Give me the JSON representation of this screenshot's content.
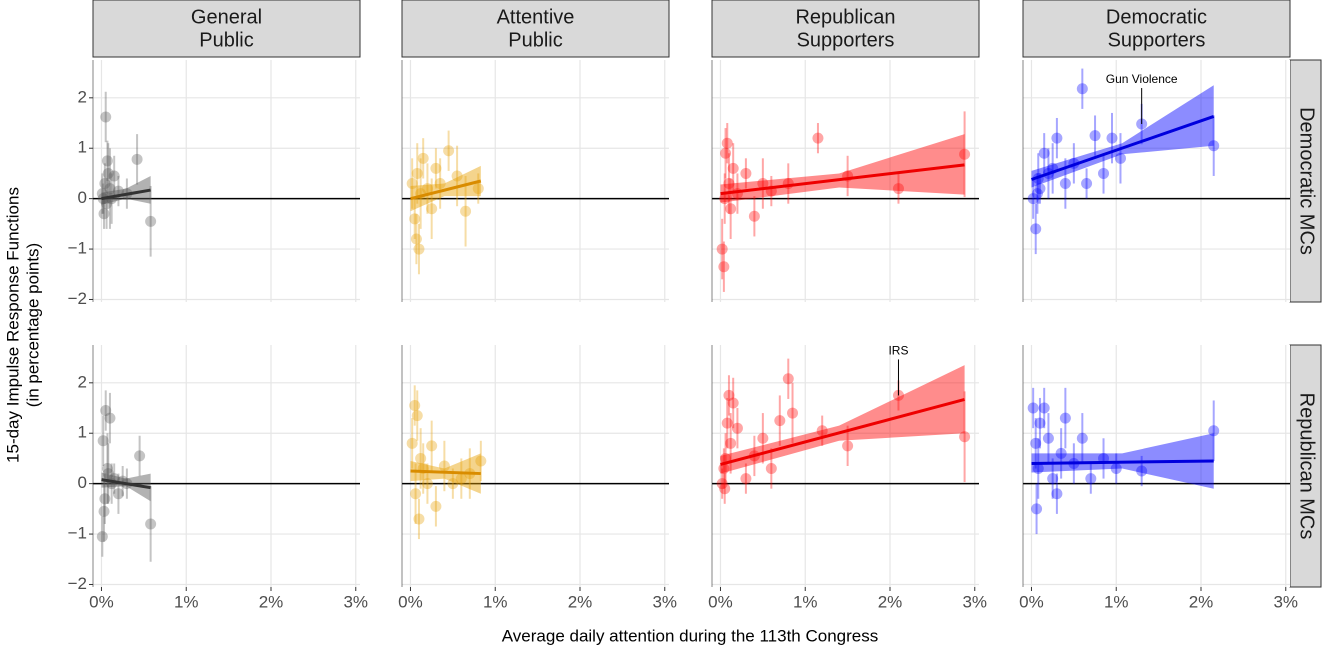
{
  "figure": {
    "x_label": "Average daily attention during the 113th Congress",
    "y_label": [
      "15-day Impulse Response Functions",
      "(in percentage points)"
    ],
    "columns": [
      [
        "General",
        "Public"
      ],
      [
        "Attentive",
        "Public"
      ],
      [
        "Republican",
        "Supporters"
      ],
      [
        "Democratic",
        "Supporters"
      ]
    ],
    "rows": [
      "Democratic MCs",
      "Republican MCs"
    ]
  },
  "chart_data": [
    {
      "type": "scatter",
      "color": "#555555",
      "fit_color": "#333333",
      "hline": 0,
      "x": [
        0.01,
        0.03,
        0.05,
        0.07,
        0.08,
        0.1,
        0.12,
        0.15,
        0.2,
        0.3,
        0.42,
        0.58,
        0.06,
        0.04,
        0.02
      ],
      "y": [
        0.1,
        -0.3,
        1.62,
        0.75,
        0.5,
        0.2,
        0.0,
        0.45,
        0.15,
        0.1,
        0.78,
        -0.45,
        -0.1,
        0.3,
        0.0
      ],
      "err": [
        0.4,
        0.3,
        0.5,
        0.4,
        0.6,
        0.8,
        0.5,
        0.4,
        0.3,
        0.3,
        0.5,
        0.7,
        0.5,
        0.4,
        0.3
      ],
      "fit_x": [
        0,
        0.58
      ],
      "fit_y": [
        0.0,
        0.17
      ],
      "band_x": [
        0,
        0.29,
        0.58
      ],
      "band_lo": [
        -0.12,
        0.0,
        -0.1
      ],
      "band_hi": [
        0.12,
        0.2,
        0.45
      ],
      "xlim": [
        -0.1,
        3.05
      ],
      "ylim": [
        -2.05,
        2.75
      ],
      "xticks": [
        {
          "value": 0,
          "label": "0%"
        },
        {
          "value": 1,
          "label": "1%"
        },
        {
          "value": 2,
          "label": "2%"
        },
        {
          "value": 3,
          "label": "3%"
        }
      ],
      "yticks": [
        {
          "value": -2,
          "label": "−2"
        },
        {
          "value": -1,
          "label": "−1"
        },
        0,
        1,
        2
      ]
    },
    {
      "type": "scatter",
      "color": "#e69f00",
      "fit_color": "#d98c00",
      "hline": 0,
      "x": [
        0.02,
        0.05,
        0.08,
        0.1,
        0.12,
        0.15,
        0.2,
        0.25,
        0.3,
        0.35,
        0.45,
        0.55,
        0.65,
        0.8,
        0.07
      ],
      "y": [
        0.3,
        -0.4,
        0.5,
        -1.0,
        0.1,
        0.8,
        0.2,
        -0.2,
        0.6,
        0.3,
        0.95,
        0.45,
        -0.25,
        0.2,
        -0.8
      ],
      "err": [
        0.5,
        0.4,
        0.6,
        0.5,
        0.7,
        0.4,
        0.5,
        0.6,
        0.4,
        0.5,
        0.4,
        0.6,
        0.7,
        0.3,
        0.5
      ],
      "fit_x": [
        0,
        0.83
      ],
      "fit_y": [
        0.0,
        0.35
      ],
      "band_x": [
        0,
        0.4,
        0.83
      ],
      "band_lo": [
        -0.25,
        0.05,
        0.05
      ],
      "band_hi": [
        0.25,
        0.3,
        0.65
      ],
      "xlim": [
        -0.1,
        3.05
      ],
      "ylim": [
        -2.05,
        2.75
      ],
      "xticks": [
        {
          "value": 0,
          "label": "0%"
        },
        {
          "value": 1,
          "label": "1%"
        },
        {
          "value": 2,
          "label": "2%"
        },
        {
          "value": 3,
          "label": "3%"
        }
      ],
      "yticks": [
        {
          "value": -2,
          "label": "−2"
        },
        {
          "value": -1,
          "label": "−1"
        },
        0,
        1,
        2
      ]
    },
    {
      "type": "scatter",
      "color": "#ff0000",
      "fit_color": "#ee0000",
      "hline": 0,
      "x": [
        0.02,
        0.04,
        0.06,
        0.08,
        0.1,
        0.15,
        0.2,
        0.3,
        0.4,
        0.5,
        0.6,
        0.8,
        1.15,
        1.5,
        2.1,
        2.88,
        0.05,
        0.12
      ],
      "y": [
        -1.0,
        -1.35,
        0.9,
        1.1,
        0.3,
        0.6,
        0.1,
        0.5,
        -0.35,
        0.3,
        0.15,
        0.3,
        1.2,
        0.45,
        0.2,
        0.88,
        0.0,
        -0.2
      ],
      "err": [
        0.6,
        0.5,
        0.5,
        0.4,
        0.6,
        0.5,
        0.4,
        0.3,
        0.4,
        0.5,
        0.3,
        0.4,
        0.3,
        0.4,
        0.3,
        0.85,
        0.5,
        0.6
      ],
      "fit_x": [
        0,
        2.88
      ],
      "fit_y": [
        0.1,
        0.67
      ],
      "band_x": [
        0,
        1.4,
        2.88
      ],
      "band_lo": [
        -0.08,
        0.22,
        0.08
      ],
      "band_hi": [
        0.28,
        0.5,
        1.28
      ],
      "xlim": [
        -0.1,
        3.05
      ],
      "ylim": [
        -2.05,
        2.75
      ],
      "xticks": [
        {
          "value": 0,
          "label": "0%"
        },
        {
          "value": 1,
          "label": "1%"
        },
        {
          "value": 2,
          "label": "2%"
        },
        {
          "value": 3,
          "label": "3%"
        }
      ],
      "yticks": [
        {
          "value": -2,
          "label": "−2"
        },
        {
          "value": -1,
          "label": "−1"
        },
        0,
        1,
        2
      ]
    },
    {
      "type": "scatter",
      "color": "#0000ff",
      "fit_color": "#0000dd",
      "hline": 0,
      "x": [
        0.02,
        0.05,
        0.08,
        0.1,
        0.15,
        0.2,
        0.3,
        0.4,
        0.5,
        0.6,
        0.65,
        0.75,
        0.85,
        0.95,
        1.05,
        1.3,
        2.15,
        0.07,
        0.25
      ],
      "y": [
        0.0,
        -0.6,
        0.4,
        0.2,
        0.9,
        0.5,
        1.2,
        0.3,
        0.7,
        2.18,
        0.3,
        1.25,
        0.5,
        1.2,
        0.8,
        1.48,
        1.05,
        0.1,
        0.6
      ],
      "err": [
        0.4,
        0.5,
        0.5,
        0.3,
        0.4,
        0.5,
        0.4,
        0.5,
        0.4,
        0.4,
        0.3,
        0.4,
        0.4,
        0.5,
        0.5,
        0.4,
        0.6,
        0.4,
        0.5
      ],
      "fit_x": [
        0,
        2.15
      ],
      "fit_y": [
        0.38,
        1.63
      ],
      "band_x": [
        0,
        1.07,
        2.15
      ],
      "band_lo": [
        0.22,
        0.88,
        1.05
      ],
      "band_hi": [
        0.55,
        1.1,
        2.25
      ],
      "annotation": {
        "text": "Gun Violence",
        "x": 1.3,
        "y": 1.48
      },
      "xlim": [
        -0.1,
        3.05
      ],
      "ylim": [
        -2.05,
        2.75
      ],
      "xticks": [
        {
          "value": 0,
          "label": "0%"
        },
        {
          "value": 1,
          "label": "1%"
        },
        {
          "value": 2,
          "label": "2%"
        },
        {
          "value": 3,
          "label": "3%"
        }
      ],
      "yticks": [
        {
          "value": -2,
          "label": "−2"
        },
        {
          "value": -1,
          "label": "−1"
        },
        0,
        1,
        2
      ]
    },
    {
      "type": "scatter",
      "color": "#555555",
      "fit_color": "#333333",
      "hline": 0,
      "x": [
        0.01,
        0.02,
        0.03,
        0.05,
        0.07,
        0.1,
        0.12,
        0.15,
        0.2,
        0.25,
        0.3,
        0.45,
        0.58,
        0.04,
        0.08
      ],
      "y": [
        -1.05,
        0.85,
        -0.55,
        1.45,
        0.3,
        1.3,
        0.0,
        0.1,
        -0.2,
        0.05,
        0.0,
        0.55,
        -0.8,
        -0.3,
        0.2
      ],
      "err": [
        0.4,
        0.5,
        0.6,
        0.4,
        0.7,
        0.5,
        0.4,
        0.3,
        0.4,
        0.3,
        0.3,
        0.4,
        0.75,
        0.5,
        0.6
      ],
      "fit_x": [
        0,
        0.58
      ],
      "fit_y": [
        0.08,
        -0.08
      ],
      "band_x": [
        0,
        0.29,
        0.58
      ],
      "band_lo": [
        -0.08,
        -0.05,
        -0.35
      ],
      "band_hi": [
        0.22,
        0.1,
        0.2
      ],
      "xlim": [
        -0.1,
        3.05
      ],
      "ylim": [
        -2.05,
        2.75
      ],
      "xticks": [
        {
          "value": 0,
          "label": "0%"
        },
        {
          "value": 1,
          "label": "1%"
        },
        {
          "value": 2,
          "label": "2%"
        },
        {
          "value": 3,
          "label": "3%"
        }
      ],
      "yticks": [
        {
          "value": -2,
          "label": "−2"
        },
        {
          "value": -1,
          "label": "−1"
        },
        0,
        1,
        2
      ]
    },
    {
      "type": "scatter",
      "color": "#e69f00",
      "fit_color": "#d98c00",
      "hline": 0,
      "x": [
        0.02,
        0.05,
        0.08,
        0.1,
        0.12,
        0.15,
        0.2,
        0.25,
        0.3,
        0.4,
        0.5,
        0.6,
        0.7,
        0.83,
        0.06
      ],
      "y": [
        0.8,
        1.55,
        1.35,
        -0.7,
        0.5,
        0.3,
        0.0,
        0.75,
        -0.45,
        0.35,
        0.0,
        0.1,
        0.2,
        0.45,
        -0.2
      ],
      "err": [
        0.5,
        0.4,
        0.5,
        0.4,
        0.6,
        0.5,
        0.4,
        0.5,
        0.4,
        0.5,
        0.3,
        0.4,
        0.5,
        0.4,
        0.6
      ],
      "fit_x": [
        0,
        0.83
      ],
      "fit_y": [
        0.25,
        0.2
      ],
      "band_x": [
        0,
        0.4,
        0.83
      ],
      "band_lo": [
        0.05,
        0.1,
        -0.2
      ],
      "band_hi": [
        0.45,
        0.3,
        0.6
      ],
      "xlim": [
        -0.1,
        3.05
      ],
      "ylim": [
        -2.05,
        2.75
      ],
      "xticks": [
        {
          "value": 0,
          "label": "0%"
        },
        {
          "value": 1,
          "label": "1%"
        },
        {
          "value": 2,
          "label": "2%"
        },
        {
          "value": 3,
          "label": "3%"
        }
      ],
      "yticks": [
        {
          "value": -2,
          "label": "−2"
        },
        {
          "value": -1,
          "label": "−1"
        },
        0,
        1,
        2
      ]
    },
    {
      "type": "scatter",
      "color": "#ff0000",
      "fit_color": "#ee0000",
      "hline": 0,
      "x": [
        0.02,
        0.04,
        0.06,
        0.08,
        0.1,
        0.12,
        0.15,
        0.2,
        0.3,
        0.4,
        0.5,
        0.6,
        0.7,
        0.8,
        0.85,
        1.2,
        1.5,
        2.1,
        2.88,
        0.05
      ],
      "y": [
        0.0,
        0.3,
        0.5,
        1.2,
        1.75,
        0.8,
        1.6,
        1.1,
        0.1,
        0.55,
        0.9,
        0.3,
        1.25,
        2.08,
        1.4,
        1.05,
        0.75,
        1.75,
        0.93,
        -0.1
      ],
      "err": [
        0.3,
        0.4,
        0.5,
        0.5,
        0.4,
        0.6,
        0.5,
        0.4,
        0.3,
        0.4,
        0.5,
        0.4,
        0.5,
        0.4,
        0.6,
        0.3,
        0.4,
        0.3,
        0.9,
        0.3
      ],
      "fit_x": [
        0,
        2.88
      ],
      "fit_y": [
        0.38,
        1.67
      ],
      "band_x": [
        0,
        1.4,
        2.88
      ],
      "band_lo": [
        0.2,
        0.85,
        1.0
      ],
      "band_hi": [
        0.55,
        1.15,
        2.35
      ],
      "annotation": {
        "text": "IRS",
        "x": 2.1,
        "y": 1.75
      },
      "xlim": [
        -0.1,
        3.05
      ],
      "ylim": [
        -2.05,
        2.75
      ],
      "xticks": [
        {
          "value": 0,
          "label": "0%"
        },
        {
          "value": 1,
          "label": "1%"
        },
        {
          "value": 2,
          "label": "2%"
        },
        {
          "value": 3,
          "label": "3%"
        }
      ],
      "yticks": [
        {
          "value": -2,
          "label": "−2"
        },
        {
          "value": -1,
          "label": "−1"
        },
        0,
        1,
        2
      ]
    },
    {
      "type": "scatter",
      "color": "#0000ff",
      "fit_color": "#0000dd",
      "hline": 0,
      "x": [
        0.02,
        0.05,
        0.08,
        0.1,
        0.15,
        0.2,
        0.3,
        0.35,
        0.4,
        0.5,
        0.6,
        0.7,
        0.85,
        1.0,
        1.3,
        2.15,
        0.06,
        0.25
      ],
      "y": [
        1.5,
        0.8,
        0.3,
        1.2,
        1.5,
        0.9,
        -0.2,
        0.6,
        1.3,
        0.4,
        0.9,
        0.1,
        0.5,
        0.3,
        0.25,
        1.05,
        -0.5,
        0.1
      ],
      "err": [
        0.4,
        0.5,
        0.6,
        0.5,
        0.4,
        0.5,
        0.4,
        0.5,
        0.6,
        0.4,
        0.5,
        0.3,
        0.4,
        0.3,
        0.3,
        0.6,
        0.5,
        0.4
      ],
      "fit_x": [
        0,
        2.15
      ],
      "fit_y": [
        0.4,
        0.45
      ],
      "band_x": [
        0,
        1.07,
        2.15
      ],
      "band_lo": [
        0.22,
        0.3,
        -0.1
      ],
      "band_hi": [
        0.6,
        0.6,
        1.0
      ],
      "xlim": [
        -0.1,
        3.05
      ],
      "ylim": [
        -2.05,
        2.75
      ],
      "xticks": [
        {
          "value": 0,
          "label": "0%"
        },
        {
          "value": 1,
          "label": "1%"
        },
        {
          "value": 2,
          "label": "2%"
        },
        {
          "value": 3,
          "label": "3%"
        }
      ],
      "yticks": [
        {
          "value": -2,
          "label": "−2"
        },
        {
          "value": -1,
          "label": "−1"
        },
        0,
        1,
        2
      ]
    }
  ]
}
